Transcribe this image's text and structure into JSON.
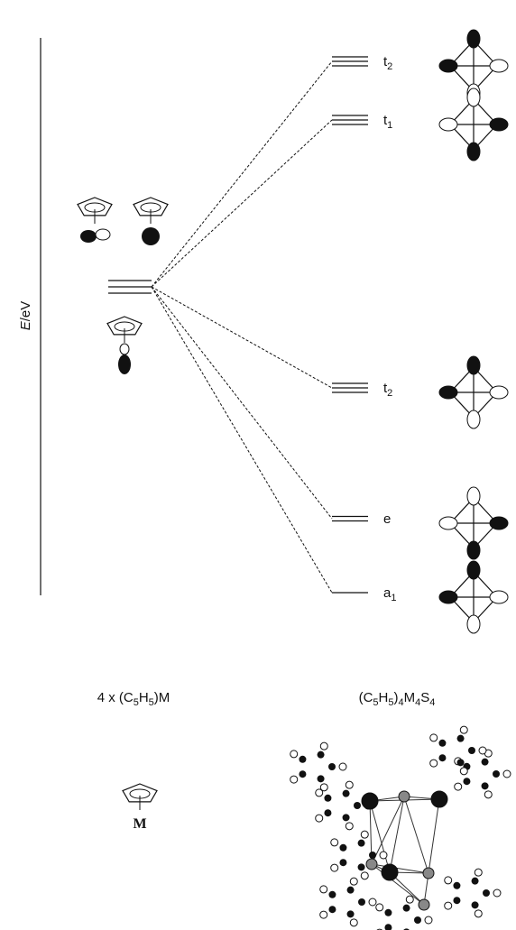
{
  "axis_label": {
    "italic": "E",
    "text": "/eV"
  },
  "levels": [
    {
      "label": "t",
      "subscript": "2"
    },
    {
      "label": "t",
      "subscript": "1"
    },
    {
      "label": "t",
      "subscript": "2"
    },
    {
      "label": "e"
    },
    {
      "label": "a",
      "subscript": "1"
    }
  ],
  "fragment_label": [
    {
      "text": "4 x (C"
    },
    {
      "sub": "5"
    },
    {
      "text": "H"
    },
    {
      "sub": "5"
    },
    {
      "text": ")M"
    }
  ],
  "cluster_label": [
    {
      "text": "(C"
    },
    {
      "sub": "5"
    },
    {
      "text": "H"
    },
    {
      "sub": "5"
    },
    {
      "text": ")"
    },
    {
      "sub": "4"
    },
    {
      "text": "M"
    },
    {
      "sub": "4"
    },
    {
      "text": "S"
    },
    {
      "sub": "4"
    }
  ],
  "fragment_atom": "M"
}
